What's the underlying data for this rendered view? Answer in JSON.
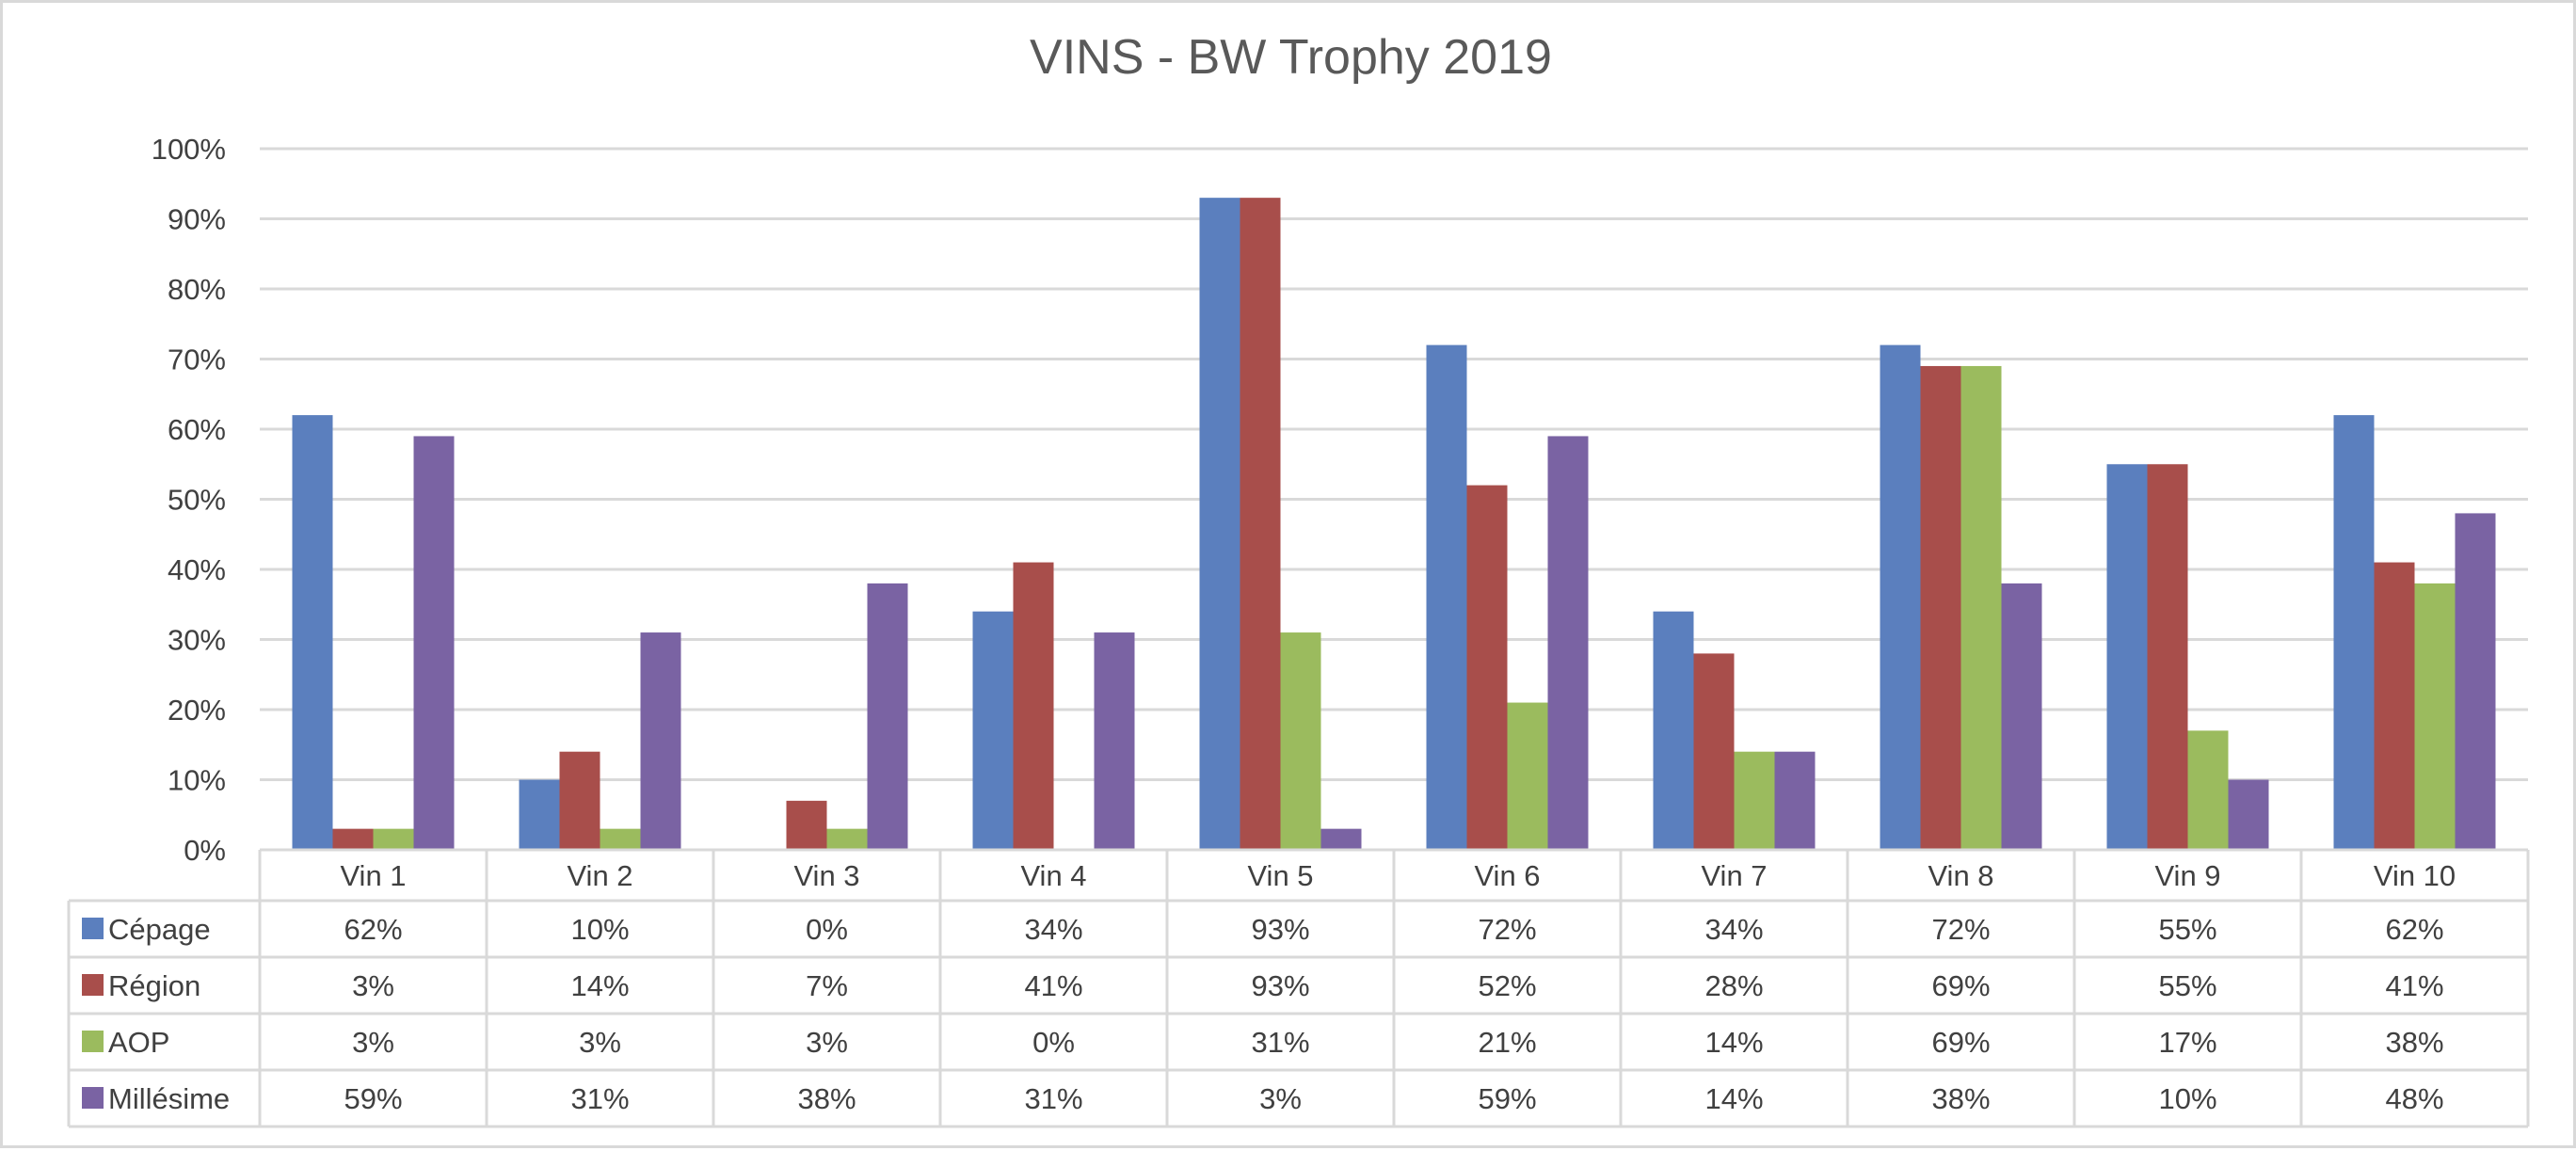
{
  "chart_data": {
    "type": "bar",
    "title": "VINS - BW Trophy 2019",
    "categories": [
      "Vin 1",
      "Vin 2",
      "Vin 3",
      "Vin 4",
      "Vin 5",
      "Vin 6",
      "Vin 7",
      "Vin 8",
      "Vin 9",
      "Vin 10"
    ],
    "series": [
      {
        "name": "Cépage",
        "color": "#5b7fbe",
        "values": [
          62,
          10,
          0,
          34,
          93,
          72,
          34,
          72,
          55,
          62
        ],
        "labels": [
          "62%",
          "10%",
          "0%",
          "34%",
          "93%",
          "72%",
          "34%",
          "72%",
          "55%",
          "62%"
        ]
      },
      {
        "name": "Région",
        "color": "#a84e4b",
        "values": [
          3,
          14,
          7,
          41,
          93,
          52,
          28,
          69,
          55,
          41
        ],
        "labels": [
          "3%",
          "14%",
          "7%",
          "41%",
          "93%",
          "52%",
          "28%",
          "69%",
          "55%",
          "41%"
        ]
      },
      {
        "name": "AOP",
        "color": "#9bbb5e",
        "values": [
          3,
          3,
          3,
          0,
          31,
          21,
          14,
          69,
          17,
          38
        ],
        "labels": [
          "3%",
          "3%",
          "3%",
          "0%",
          "31%",
          "21%",
          "14%",
          "69%",
          "17%",
          "38%"
        ]
      },
      {
        "name": "Millésime",
        "color": "#7a63a3",
        "values": [
          59,
          31,
          38,
          31,
          3,
          59,
          14,
          38,
          10,
          48
        ],
        "labels": [
          "59%",
          "31%",
          "38%",
          "31%",
          "3%",
          "59%",
          "14%",
          "38%",
          "10%",
          "48%"
        ]
      }
    ],
    "ylim": [
      0,
      100
    ],
    "yticks": [
      0,
      10,
      20,
      30,
      40,
      50,
      60,
      70,
      80,
      90,
      100
    ],
    "ytick_labels": [
      "0%",
      "10%",
      "20%",
      "30%",
      "40%",
      "50%",
      "60%",
      "70%",
      "80%",
      "90%",
      "100%"
    ],
    "xlabel": "",
    "ylabel": "",
    "grid": true,
    "legend": "data-table-left",
    "data_table": true
  }
}
